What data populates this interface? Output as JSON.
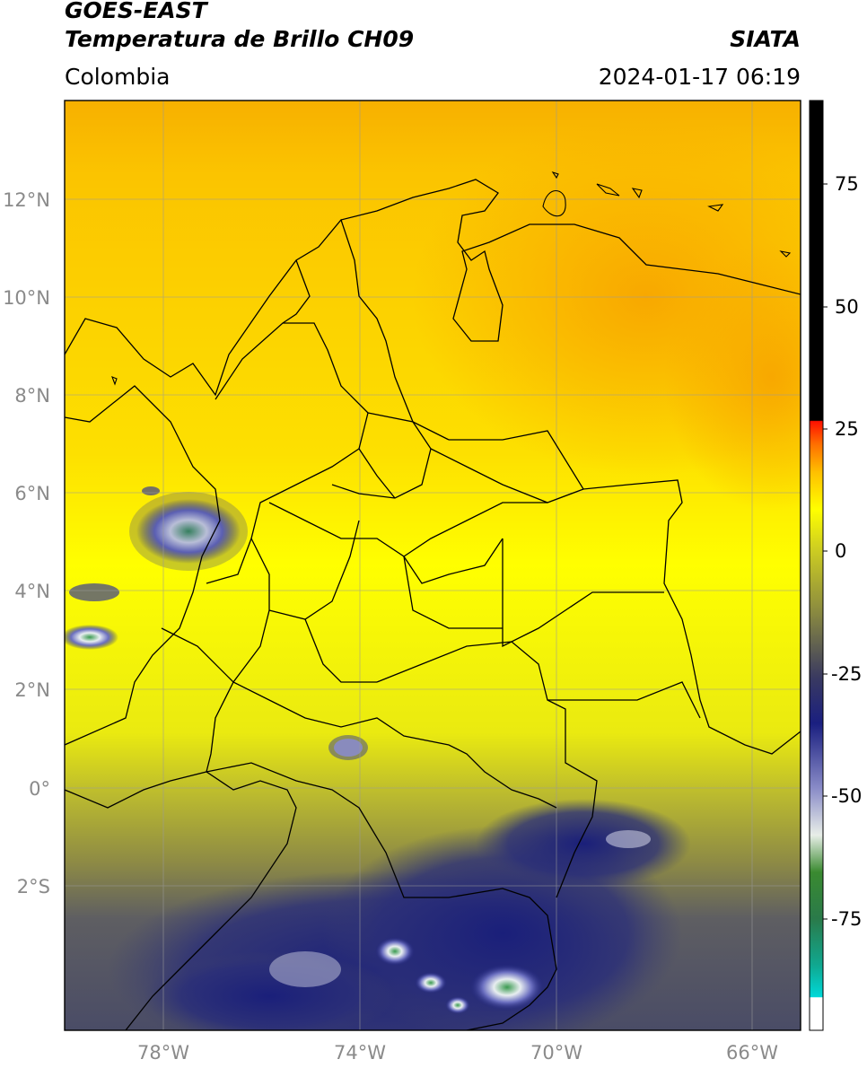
{
  "header": {
    "satellite": "GOES-EAST",
    "product": "Temperatura de Brillo CH09",
    "organization": "SIATA",
    "region": "Colombia",
    "datetime": "2024-01-17 06:19"
  },
  "map": {
    "lon_range": [
      -80,
      -65
    ],
    "lat_range": [
      -5,
      14
    ],
    "lat_ticks": [
      "12°N",
      "10°N",
      "8°N",
      "6°N",
      "4°N",
      "2°N",
      "0°",
      "2°S"
    ],
    "lon_ticks": [
      "78°W",
      "74°W",
      "70°W",
      "66°W"
    ]
  },
  "colorbar": {
    "ticks": [
      "75",
      "50",
      "25",
      "0",
      "-25",
      "-50",
      "-75"
    ],
    "range": [
      -97,
      90
    ]
  }
}
